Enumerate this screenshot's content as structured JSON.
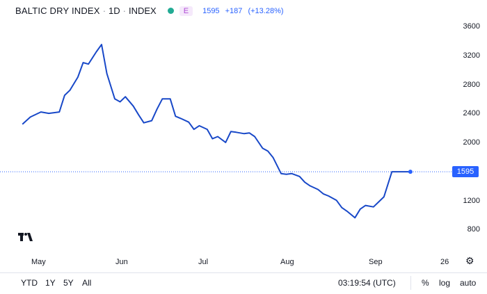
{
  "header": {
    "title": "BALTIC DRY INDEX",
    "interval": "1D",
    "exchange": "INDEX",
    "badge": "E",
    "last": "1595",
    "change": "+187",
    "change_pct": "(+13.28%)"
  },
  "price_tag": "1595",
  "colors": {
    "line": "#1848c8",
    "accent": "#2962ff",
    "status": "#22ab94"
  },
  "y_axis_labels": [
    "3600",
    "3200",
    "2800",
    "2400",
    "2000",
    "1600",
    "1200",
    "800"
  ],
  "x_axis_labels": [
    "May",
    "Jun",
    "Jul",
    "Aug",
    "Sep",
    "26"
  ],
  "range_buttons": [
    "YTD",
    "1Y",
    "5Y",
    "All"
  ],
  "clock": "03:19:54 (UTC)",
  "options": [
    "%",
    "log",
    "auto"
  ],
  "icons": {
    "logo": "tradingview-logo-icon",
    "settings": "gear-icon"
  },
  "chart_data": {
    "type": "line",
    "series": [
      {
        "name": "BALTIC DRY INDEX",
        "x": [
          "2022-04-25",
          "2022-04-28",
          "2022-05-02",
          "2022-05-05",
          "2022-05-09",
          "2022-05-11",
          "2022-05-13",
          "2022-05-16",
          "2022-05-18",
          "2022-05-20",
          "2022-05-23",
          "2022-05-25",
          "2022-05-27",
          "2022-05-30",
          "2022-06-01",
          "2022-06-03",
          "2022-06-06",
          "2022-06-08",
          "2022-06-10",
          "2022-06-13",
          "2022-06-15",
          "2022-06-17",
          "2022-06-20",
          "2022-06-22",
          "2022-06-24",
          "2022-06-27",
          "2022-06-29",
          "2022-07-01",
          "2022-07-04",
          "2022-07-06",
          "2022-07-08",
          "2022-07-11",
          "2022-07-13",
          "2022-07-15",
          "2022-07-18",
          "2022-07-20",
          "2022-07-22",
          "2022-07-25",
          "2022-07-27",
          "2022-07-29",
          "2022-08-01",
          "2022-08-03",
          "2022-08-05",
          "2022-08-08",
          "2022-08-10",
          "2022-08-12",
          "2022-08-15",
          "2022-08-17",
          "2022-08-19",
          "2022-08-22",
          "2022-08-24",
          "2022-08-26",
          "2022-08-29",
          "2022-08-31",
          "2022-09-02",
          "2022-09-05",
          "2022-09-07",
          "2022-09-09",
          "2022-09-12",
          "2022-09-14",
          "2022-09-16",
          "2022-09-19"
        ],
        "values": [
          2250,
          2350,
          2420,
          2400,
          2420,
          2650,
          2720,
          2900,
          3100,
          3080,
          3250,
          3350,
          2950,
          2600,
          2560,
          2630,
          2500,
          2380,
          2270,
          2300,
          2460,
          2600,
          2600,
          2360,
          2330,
          2280,
          2180,
          2230,
          2180,
          2050,
          2080,
          2000,
          2150,
          2140,
          2120,
          2130,
          2080,
          1920,
          1880,
          1790,
          1570,
          1560,
          1570,
          1530,
          1450,
          1400,
          1350,
          1290,
          1260,
          1200,
          1100,
          1050,
          960,
          1080,
          1130,
          1110,
          1180,
          1250,
          1595,
          1595,
          1595,
          1595
        ],
        "color": "#1848c8"
      }
    ],
    "ylim": [
      700,
      3700
    ],
    "y_ticks": [
      800,
      1200,
      1600,
      2000,
      2400,
      2800,
      3200,
      3600
    ],
    "x_tick_labels": [
      "May",
      "Jun",
      "Jul",
      "Aug",
      "Sep",
      "26"
    ],
    "last_value": 1595,
    "grid": false
  }
}
